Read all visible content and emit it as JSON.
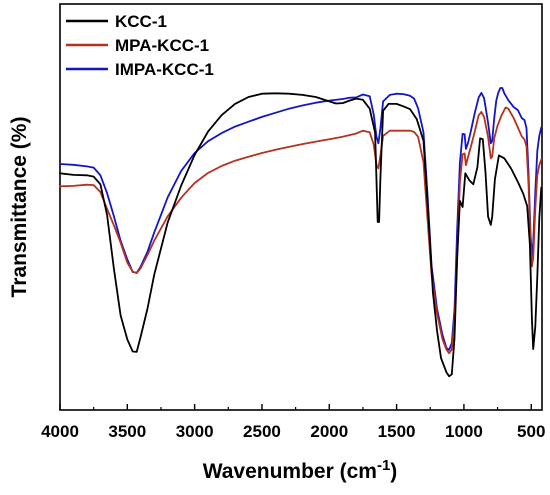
{
  "chart_data": {
    "type": "line",
    "xlabel": "Wavenumber (cm",
    "xlabel_sup": "-1",
    "xlabel_close": ")",
    "ylabel": "Transmittance (%)",
    "xlim": [
      4000,
      420
    ],
    "x_reversed": true,
    "ylim": [
      0,
      100
    ],
    "y_ticks_shown": false,
    "grid": false,
    "legend_position": "top-left",
    "x_ticks": [
      4000,
      3500,
      3000,
      2500,
      2000,
      1500,
      1000,
      500
    ],
    "x_tick_labels": [
      "4000",
      "3500",
      "3000",
      "2500",
      "2000",
      "1500",
      "1000",
      "500"
    ],
    "series": [
      {
        "name": "KCC-1",
        "color": "#000000",
        "points": [
          [
            4000,
            58.3
          ],
          [
            3900,
            57.9
          ],
          [
            3800,
            57.8
          ],
          [
            3750,
            57.5
          ],
          [
            3700,
            55.6
          ],
          [
            3650,
            48.0
          ],
          [
            3600,
            34.8
          ],
          [
            3550,
            23.3
          ],
          [
            3500,
            17.4
          ],
          [
            3460,
            14.4
          ],
          [
            3430,
            14.3
          ],
          [
            3400,
            18.2
          ],
          [
            3350,
            25.0
          ],
          [
            3300,
            33.3
          ],
          [
            3200,
            46.2
          ],
          [
            3100,
            55.3
          ],
          [
            3000,
            62.8
          ],
          [
            2900,
            68.6
          ],
          [
            2800,
            72.6
          ],
          [
            2700,
            75.4
          ],
          [
            2600,
            77.1
          ],
          [
            2500,
            77.9
          ],
          [
            2400,
            78.0
          ],
          [
            2300,
            77.9
          ],
          [
            2200,
            77.6
          ],
          [
            2100,
            77.1
          ],
          [
            2000,
            76.0
          ],
          [
            1950,
            75.5
          ],
          [
            1900,
            75.6
          ],
          [
            1850,
            76.2
          ],
          [
            1800,
            76.7
          ],
          [
            1750,
            76.4
          ],
          [
            1700,
            74.2
          ],
          [
            1660,
            68.3
          ],
          [
            1640,
            46.3
          ],
          [
            1630,
            46.3
          ],
          [
            1620,
            57.1
          ],
          [
            1600,
            73.7
          ],
          [
            1560,
            75.4
          ],
          [
            1500,
            75.4
          ],
          [
            1450,
            74.8
          ],
          [
            1400,
            74.1
          ],
          [
            1350,
            71.6
          ],
          [
            1300,
            66.3
          ],
          [
            1260,
            45.7
          ],
          [
            1230,
            29.0
          ],
          [
            1200,
            19.6
          ],
          [
            1170,
            12.8
          ],
          [
            1130,
            9.3
          ],
          [
            1110,
            8.3
          ],
          [
            1090,
            8.8
          ],
          [
            1070,
            17.7
          ],
          [
            1050,
            37.6
          ],
          [
            1030,
            51.5
          ],
          [
            1010,
            50.0
          ],
          [
            990,
            58.3
          ],
          [
            960,
            56.6
          ],
          [
            930,
            55.6
          ],
          [
            900,
            59.8
          ],
          [
            880,
            66.9
          ],
          [
            860,
            66.7
          ],
          [
            840,
            58.5
          ],
          [
            820,
            47.6
          ],
          [
            800,
            45.6
          ],
          [
            790,
            47.6
          ],
          [
            770,
            56.8
          ],
          [
            740,
            62.7
          ],
          [
            700,
            62.0
          ],
          [
            650,
            59.5
          ],
          [
            600,
            56.2
          ],
          [
            560,
            53.3
          ],
          [
            530,
            50.2
          ],
          [
            510,
            40.7
          ],
          [
            495,
            22.5
          ],
          [
            485,
            15.0
          ],
          [
            470,
            20.6
          ],
          [
            455,
            32.8
          ],
          [
            440,
            47.3
          ],
          [
            425,
            54.8
          ]
        ]
      },
      {
        "name": "MPA-KCC-1",
        "color": "#b5321f",
        "points": [
          [
            4000,
            55.1
          ],
          [
            3900,
            55.2
          ],
          [
            3800,
            55.5
          ],
          [
            3750,
            55.4
          ],
          [
            3700,
            53.7
          ],
          [
            3650,
            49.5
          ],
          [
            3600,
            45.5
          ],
          [
            3550,
            41.2
          ],
          [
            3500,
            36.3
          ],
          [
            3460,
            34.1
          ],
          [
            3430,
            33.7
          ],
          [
            3400,
            35.0
          ],
          [
            3350,
            38.2
          ],
          [
            3300,
            41.7
          ],
          [
            3200,
            47.7
          ],
          [
            3100,
            52.3
          ],
          [
            3000,
            55.9
          ],
          [
            2900,
            58.4
          ],
          [
            2800,
            60.1
          ],
          [
            2700,
            61.4
          ],
          [
            2600,
            62.4
          ],
          [
            2500,
            63.3
          ],
          [
            2400,
            64.1
          ],
          [
            2300,
            64.8
          ],
          [
            2200,
            65.5
          ],
          [
            2100,
            66.1
          ],
          [
            2000,
            66.7
          ],
          [
            1900,
            67.3
          ],
          [
            1800,
            68.1
          ],
          [
            1750,
            68.8
          ],
          [
            1700,
            68.4
          ],
          [
            1670,
            65.4
          ],
          [
            1650,
            60.5
          ],
          [
            1635,
            59.5
          ],
          [
            1620,
            62.7
          ],
          [
            1600,
            67.5
          ],
          [
            1550,
            68.8
          ],
          [
            1500,
            68.8
          ],
          [
            1450,
            68.8
          ],
          [
            1400,
            68.8
          ],
          [
            1370,
            68.5
          ],
          [
            1340,
            67.3
          ],
          [
            1300,
            61.0
          ],
          [
            1270,
            46.7
          ],
          [
            1240,
            33.3
          ],
          [
            1200,
            23.8
          ],
          [
            1160,
            17.5
          ],
          [
            1130,
            14.9
          ],
          [
            1110,
            14.0
          ],
          [
            1090,
            14.9
          ],
          [
            1070,
            22.1
          ],
          [
            1050,
            38.0
          ],
          [
            1030,
            56.1
          ],
          [
            1010,
            63.0
          ],
          [
            995,
            63.2
          ],
          [
            985,
            60.3
          ],
          [
            970,
            62.2
          ],
          [
            950,
            64.6
          ],
          [
            920,
            68.5
          ],
          [
            890,
            72.6
          ],
          [
            870,
            73.4
          ],
          [
            850,
            72.2
          ],
          [
            820,
            67.2
          ],
          [
            800,
            62.0
          ],
          [
            790,
            62.4
          ],
          [
            775,
            66.9
          ],
          [
            750,
            70.1
          ],
          [
            720,
            72.6
          ],
          [
            690,
            74.5
          ],
          [
            670,
            74.2
          ],
          [
            630,
            71.9
          ],
          [
            600,
            69.6
          ],
          [
            570,
            67.4
          ],
          [
            550,
            66.6
          ],
          [
            535,
            64.9
          ],
          [
            520,
            55.6
          ],
          [
            505,
            40.9
          ],
          [
            495,
            35.4
          ],
          [
            485,
            37.4
          ],
          [
            470,
            49.6
          ],
          [
            455,
            57.8
          ],
          [
            440,
            60.3
          ],
          [
            425,
            61.7
          ]
        ]
      },
      {
        "name": "IMPA-KCC-1",
        "color": "#1414c8",
        "points": [
          [
            4000,
            60.6
          ],
          [
            3900,
            60.4
          ],
          [
            3800,
            60.0
          ],
          [
            3750,
            59.7
          ],
          [
            3700,
            57.8
          ],
          [
            3650,
            53.4
          ],
          [
            3600,
            47.7
          ],
          [
            3550,
            41.7
          ],
          [
            3500,
            37.1
          ],
          [
            3460,
            34.0
          ],
          [
            3430,
            33.8
          ],
          [
            3400,
            35.4
          ],
          [
            3350,
            39.0
          ],
          [
            3300,
            43.7
          ],
          [
            3200,
            52.4
          ],
          [
            3100,
            58.9
          ],
          [
            3000,
            63.3
          ],
          [
            2900,
            66.2
          ],
          [
            2800,
            68.2
          ],
          [
            2700,
            69.8
          ],
          [
            2600,
            71.0
          ],
          [
            2500,
            72.2
          ],
          [
            2400,
            73.2
          ],
          [
            2300,
            74.2
          ],
          [
            2200,
            75.0
          ],
          [
            2100,
            75.7
          ],
          [
            2000,
            76.2
          ],
          [
            1900,
            76.6
          ],
          [
            1850,
            76.9
          ],
          [
            1800,
            77.0
          ],
          [
            1750,
            77.7
          ],
          [
            1700,
            77.3
          ],
          [
            1670,
            72.8
          ],
          [
            1650,
            67.4
          ],
          [
            1635,
            65.7
          ],
          [
            1620,
            69.4
          ],
          [
            1600,
            76.0
          ],
          [
            1550,
            77.6
          ],
          [
            1500,
            77.9
          ],
          [
            1450,
            77.8
          ],
          [
            1400,
            77.4
          ],
          [
            1370,
            76.7
          ],
          [
            1340,
            74.3
          ],
          [
            1300,
            68.4
          ],
          [
            1270,
            52.6
          ],
          [
            1240,
            35.4
          ],
          [
            1200,
            25.0
          ],
          [
            1160,
            18.6
          ],
          [
            1130,
            15.3
          ],
          [
            1110,
            14.8
          ],
          [
            1090,
            16.5
          ],
          [
            1070,
            24.7
          ],
          [
            1050,
            44.6
          ],
          [
            1030,
            60.9
          ],
          [
            1010,
            68.0
          ],
          [
            995,
            67.9
          ],
          [
            985,
            64.3
          ],
          [
            970,
            65.7
          ],
          [
            950,
            68.4
          ],
          [
            920,
            73.1
          ],
          [
            890,
            77.0
          ],
          [
            870,
            78.1
          ],
          [
            850,
            76.8
          ],
          [
            820,
            70.7
          ],
          [
            800,
            65.7
          ],
          [
            790,
            66.3
          ],
          [
            775,
            71.8
          ],
          [
            760,
            76.1
          ],
          [
            745,
            78.1
          ],
          [
            730,
            79.3
          ],
          [
            715,
            79.3
          ],
          [
            700,
            78.0
          ],
          [
            670,
            76.3
          ],
          [
            630,
            74.6
          ],
          [
            600,
            73.9
          ],
          [
            570,
            71.9
          ],
          [
            550,
            71.4
          ],
          [
            535,
            69.4
          ],
          [
            520,
            58.5
          ],
          [
            505,
            43.0
          ],
          [
            495,
            37.9
          ],
          [
            485,
            41.0
          ],
          [
            470,
            53.7
          ],
          [
            455,
            63.8
          ],
          [
            440,
            67.5
          ],
          [
            425,
            69.6
          ]
        ]
      }
    ]
  }
}
